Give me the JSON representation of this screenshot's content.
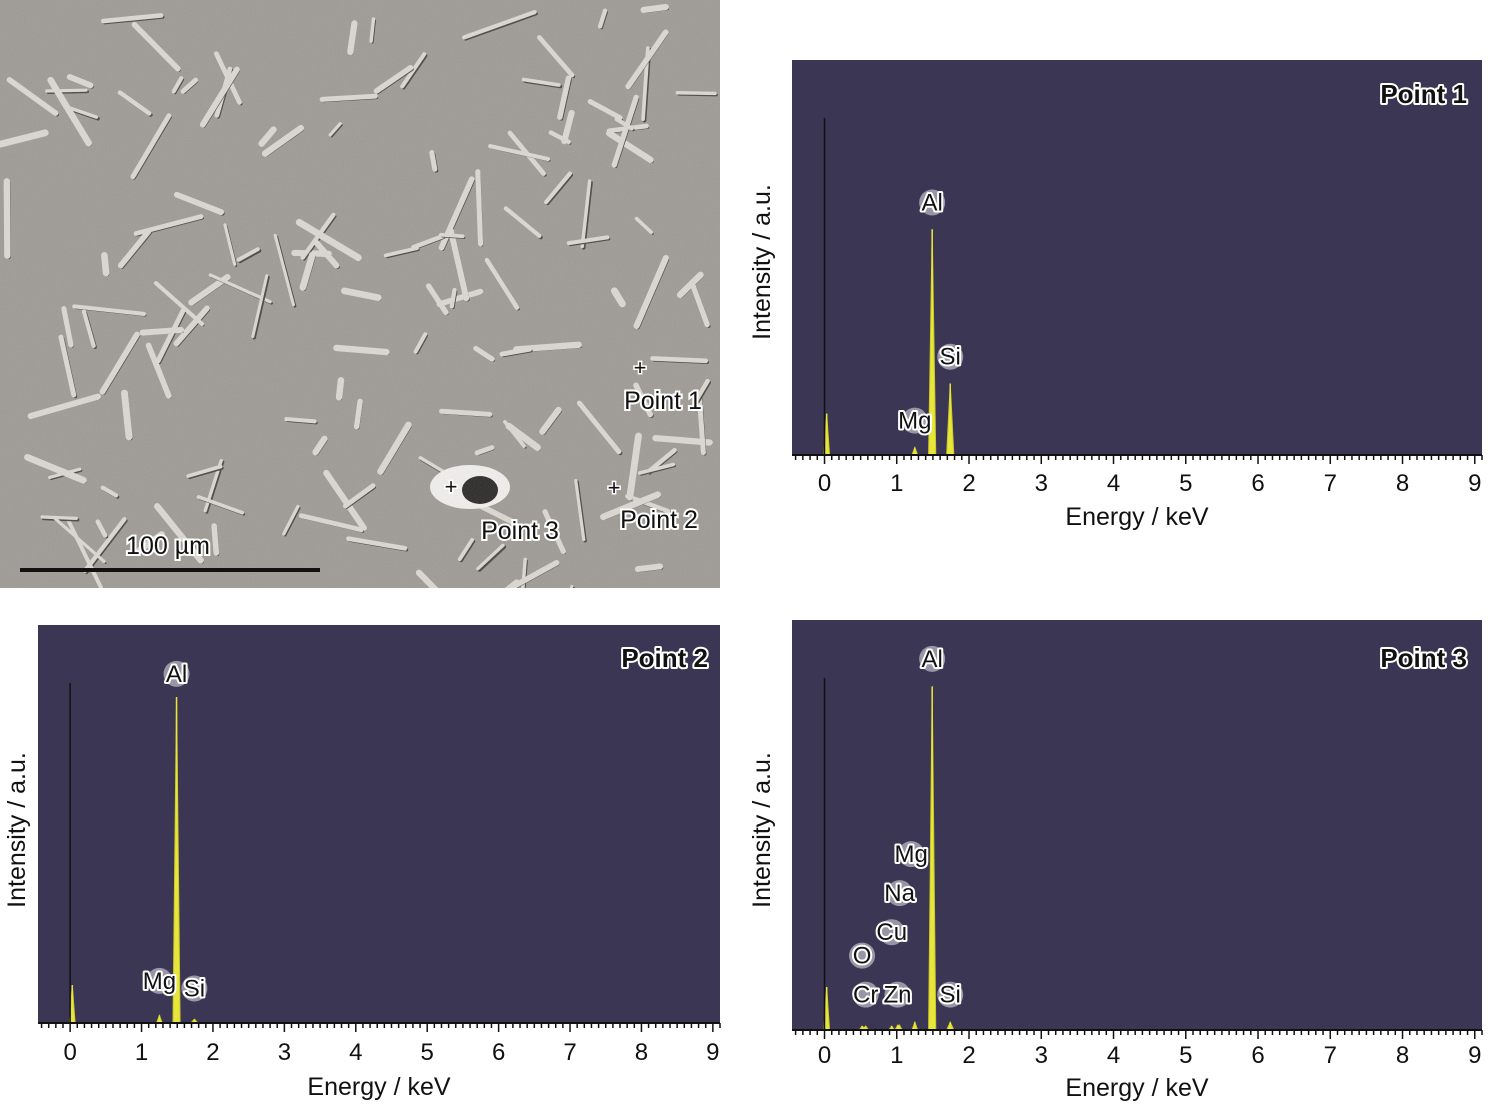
{
  "sem_image": {
    "scale_bar_label": "100 µm",
    "markers": [
      {
        "label": "Point 1"
      },
      {
        "label": "Point 2"
      },
      {
        "label": "Point 3"
      }
    ],
    "background_color": "#9e9a95"
  },
  "chart_data": [
    {
      "type": "line",
      "title": "Point 1",
      "xlabel": "Energy / keV",
      "ylabel": "Intensity / a.u.",
      "xlim": [
        -0.45,
        9.1
      ],
      "ylim": [
        0,
        1.05
      ],
      "xticks": [
        0,
        1,
        2,
        3,
        4,
        5,
        6,
        7,
        8,
        9
      ],
      "grid": false,
      "background_color": "#3b3654",
      "fill_color": "#e8e63a",
      "peaks": [
        {
          "element": "",
          "energy": 0.03,
          "intensity": 0.11
        },
        {
          "element": "Mg",
          "energy": 1.25,
          "intensity": 0.02
        },
        {
          "element": "Al",
          "energy": 1.49,
          "intensity": 0.6
        },
        {
          "element": "Si",
          "energy": 1.74,
          "intensity": 0.19
        }
      ],
      "labels": [
        {
          "text": "Al",
          "energy": 1.49,
          "intensity": 0.65
        },
        {
          "text": "Si",
          "energy": 1.74,
          "intensity": 0.24
        },
        {
          "text": "Mg",
          "energy": 1.25,
          "intensity": 0.07
        }
      ]
    },
    {
      "type": "line",
      "title": "Point 2",
      "xlabel": "Energy / keV",
      "ylabel": "Intensity / a.u.",
      "xlim": [
        -0.45,
        9.1
      ],
      "ylim": [
        0,
        1.05
      ],
      "xticks": [
        0,
        1,
        2,
        3,
        4,
        5,
        6,
        7,
        8,
        9
      ],
      "grid": false,
      "background_color": "#3b3654",
      "fill_color": "#e8e63a",
      "peaks": [
        {
          "element": "",
          "energy": 0.03,
          "intensity": 0.1
        },
        {
          "element": "Mg",
          "energy": 1.25,
          "intensity": 0.02
        },
        {
          "element": "Al",
          "energy": 1.49,
          "intensity": 0.86
        },
        {
          "element": "Si",
          "energy": 1.74,
          "intensity": 0.01
        }
      ],
      "labels": [
        {
          "text": "Al",
          "energy": 1.49,
          "intensity": 0.9
        },
        {
          "text": "Mg",
          "energy": 1.25,
          "intensity": 0.09
        },
        {
          "text": "Si",
          "energy": 1.74,
          "intensity": 0.07
        }
      ]
    },
    {
      "type": "line",
      "title": "Point 3",
      "xlabel": "Energy / keV",
      "ylabel": "Intensity / a.u.",
      "xlim": [
        -0.45,
        9.1
      ],
      "ylim": [
        0,
        1.05
      ],
      "xticks": [
        0,
        1,
        2,
        3,
        4,
        5,
        6,
        7,
        8,
        9
      ],
      "grid": false,
      "background_color": "#3b3654",
      "fill_color": "#e8e63a",
      "peaks": [
        {
          "element": "",
          "energy": 0.03,
          "intensity": 0.11
        },
        {
          "element": "O",
          "energy": 0.52,
          "intensity": 0.01
        },
        {
          "element": "Cr",
          "energy": 0.57,
          "intensity": 0.01
        },
        {
          "element": "Cu",
          "energy": 0.93,
          "intensity": 0.01
        },
        {
          "element": "Zn",
          "energy": 1.01,
          "intensity": 0.01
        },
        {
          "element": "Na",
          "energy": 1.04,
          "intensity": 0.01
        },
        {
          "element": "Mg",
          "energy": 1.25,
          "intensity": 0.02
        },
        {
          "element": "Al",
          "energy": 1.49,
          "intensity": 0.88
        },
        {
          "element": "Si",
          "energy": 1.74,
          "intensity": 0.02
        }
      ],
      "labels": [
        {
          "text": "Al",
          "energy": 1.49,
          "intensity": 0.93
        },
        {
          "text": "Mg",
          "energy": 1.2,
          "intensity": 0.43
        },
        {
          "text": "Na",
          "energy": 1.04,
          "intensity": 0.33
        },
        {
          "text": "Cu",
          "energy": 0.93,
          "intensity": 0.23
        },
        {
          "text": "O",
          "energy": 0.52,
          "intensity": 0.17
        },
        {
          "text": "Cr",
          "energy": 0.57,
          "intensity": 0.07
        },
        {
          "text": "Zn",
          "energy": 1.01,
          "intensity": 0.07
        },
        {
          "text": "Si",
          "energy": 1.74,
          "intensity": 0.07
        }
      ]
    }
  ]
}
